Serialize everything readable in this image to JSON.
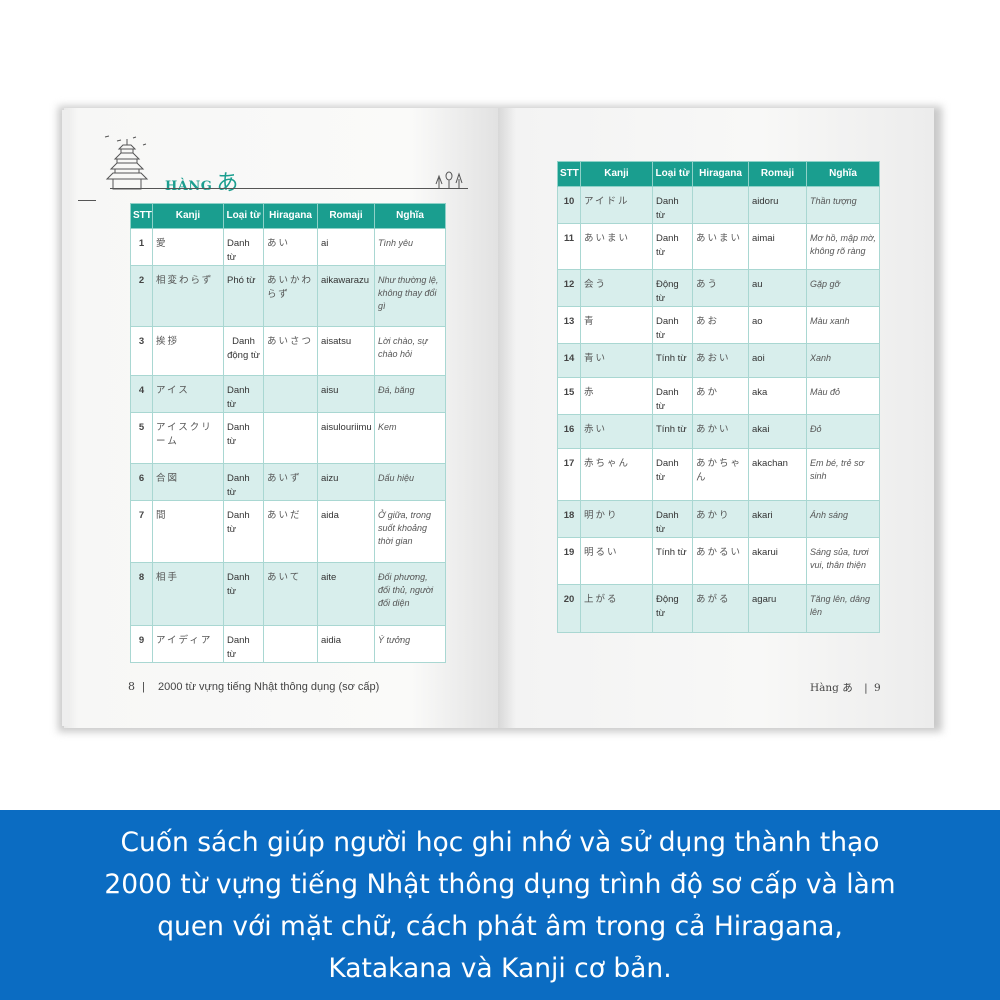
{
  "book": {
    "left_page": {
      "heading_prefix": "HÀNG",
      "heading_kana": "あ",
      "page_number": "8",
      "footer_title": "2000 từ vựng tiếng Nhật thông dụng (sơ cấp)",
      "columns": [
        "STT",
        "Kanji",
        "Loại từ",
        "Hiragana",
        "Romaji",
        "Nghĩa"
      ],
      "rows": [
        {
          "stt": "1",
          "kanji": "愛",
          "type": "Danh từ",
          "hiragana": "あい",
          "romaji": "ai",
          "meaning": "Tình yêu"
        },
        {
          "stt": "2",
          "kanji": "相変わらず",
          "type": "Phó từ",
          "hiragana": "あいかわらず",
          "romaji": "aikawarazu",
          "meaning": "Như thường lệ, không thay đổi gì"
        },
        {
          "stt": "3",
          "kanji": "挨拶",
          "type": "Danh động từ",
          "hiragana": "あいさつ",
          "romaji": "aisatsu",
          "meaning": "Lời chào, sự chào hỏi"
        },
        {
          "stt": "4",
          "kanji": "アイス",
          "type": "Danh từ",
          "hiragana": "",
          "romaji": "aisu",
          "meaning": "Đá, băng"
        },
        {
          "stt": "5",
          "kanji": "アイスクリーム",
          "type": "Danh từ",
          "hiragana": "",
          "romaji": "aisulouriimu",
          "meaning": "Kem"
        },
        {
          "stt": "6",
          "kanji": "合図",
          "type": "Danh từ",
          "hiragana": "あいず",
          "romaji": "aizu",
          "meaning": "Dấu hiệu"
        },
        {
          "stt": "7",
          "kanji": "間",
          "type": "Danh từ",
          "hiragana": "あいだ",
          "romaji": "aida",
          "meaning": "Ở giữa, trong suốt khoảng thời gian"
        },
        {
          "stt": "8",
          "kanji": "相手",
          "type": "Danh từ",
          "hiragana": "あいて",
          "romaji": "aite",
          "meaning": "Đối phương, đối thủ, người đối diện"
        },
        {
          "stt": "9",
          "kanji": "アイディア",
          "type": "Danh từ",
          "hiragana": "",
          "romaji": "aidia",
          "meaning": "Ý tưởng"
        }
      ]
    },
    "right_page": {
      "footer_title": "Hàng あ",
      "page_number": "9",
      "columns": [
        "STT",
        "Kanji",
        "Loại từ",
        "Hiragana",
        "Romaji",
        "Nghĩa"
      ],
      "rows": [
        {
          "stt": "10",
          "kanji": "アイドル",
          "type": "Danh từ",
          "hiragana": "",
          "romaji": "aidoru",
          "meaning": "Thần tượng"
        },
        {
          "stt": "11",
          "kanji": "あいまい",
          "type": "Danh từ",
          "hiragana": "あいまい",
          "romaji": "aimai",
          "meaning": "Mơ hồ, mập mờ, không rõ ràng"
        },
        {
          "stt": "12",
          "kanji": "会う",
          "type": "Động từ",
          "hiragana": "あう",
          "romaji": "au",
          "meaning": "Gặp gỡ"
        },
        {
          "stt": "13",
          "kanji": "青",
          "type": "Danh từ",
          "hiragana": "あお",
          "romaji": "ao",
          "meaning": "Màu xanh"
        },
        {
          "stt": "14",
          "kanji": "青い",
          "type": "Tính từ",
          "hiragana": "あおい",
          "romaji": "aoi",
          "meaning": "Xanh"
        },
        {
          "stt": "15",
          "kanji": "赤",
          "type": "Danh từ",
          "hiragana": "あか",
          "romaji": "aka",
          "meaning": "Màu đỏ"
        },
        {
          "stt": "16",
          "kanji": "赤い",
          "type": "Tính từ",
          "hiragana": "あかい",
          "romaji": "akai",
          "meaning": "Đỏ"
        },
        {
          "stt": "17",
          "kanji": "赤ちゃん",
          "type": "Danh từ",
          "hiragana": "あかちゃん",
          "romaji": "akachan",
          "meaning": "Em bé, trẻ sơ sinh"
        },
        {
          "stt": "18",
          "kanji": "明かり",
          "type": "Danh từ",
          "hiragana": "あかり",
          "romaji": "akari",
          "meaning": "Ánh sáng"
        },
        {
          "stt": "19",
          "kanji": "明るい",
          "type": "Tính từ",
          "hiragana": "あかるい",
          "romaji": "akarui",
          "meaning": "Sáng sủa, tươi vui, thân thiện"
        },
        {
          "stt": "20",
          "kanji": "上がる",
          "type": "Động từ",
          "hiragana": "あがる",
          "romaji": "agaru",
          "meaning": "Tăng lên, dâng lên"
        }
      ]
    }
  },
  "caption": {
    "lines": [
      "Cuốn sách giúp người học ghi nhớ và sử dụng thành thạo",
      "2000 từ vựng tiếng Nhật thông dụng trình độ sơ cấp và làm",
      "quen với mặt chữ, cách phát âm trong cả Hiragana,",
      "Katakana và Kanji cơ bản."
    ]
  },
  "colors": {
    "header_teal": "#1a9e8f",
    "row_shade": "#d8eeec",
    "caption_bg": "#0b6cc2"
  }
}
